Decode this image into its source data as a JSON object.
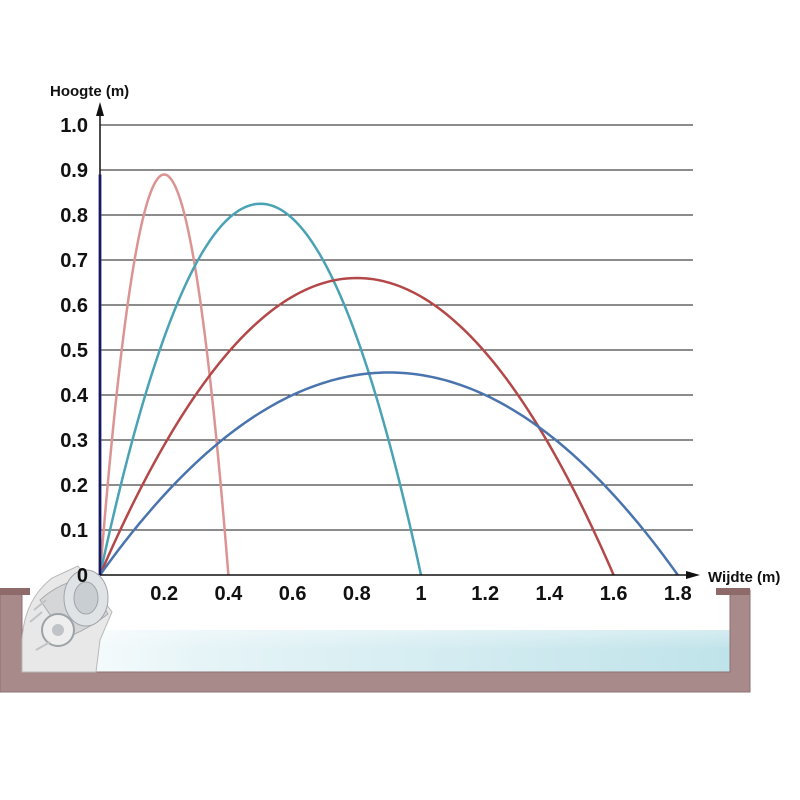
{
  "chart_data": {
    "type": "line",
    "xlabel": "Wijdte (m)",
    "ylabel": "Hoogte (m)",
    "xlim": [
      0,
      1.8
    ],
    "ylim": [
      0,
      1.0
    ],
    "x_ticks": [
      "0.2",
      "0.4",
      "0.6",
      "0.8",
      "1",
      "1.2",
      "1.4",
      "1.6",
      "1.8"
    ],
    "y_ticks": [
      "0",
      "0.1",
      "0.2",
      "0.3",
      "0.4",
      "0.5",
      "0.6",
      "0.7",
      "0.8",
      "0.9",
      "1.0"
    ],
    "grid": "horizontal",
    "series": [
      {
        "color": "#dc9493",
        "apex_x": 0.2,
        "peak": 0.89,
        "range_x": 0.4
      },
      {
        "color": "#4aa3b4",
        "apex_x": 0.5,
        "peak": 0.825,
        "range_x": 1.0
      },
      {
        "color": "#b44848",
        "apex_x": 0.8,
        "peak": 0.66,
        "range_x": 1.6
      },
      {
        "color": "#4a74ae",
        "apex_x": 0.9,
        "peak": 0.45,
        "range_x": 1.8
      }
    ]
  },
  "colors": {
    "axis": "#111111",
    "grid": "#1a1a1a",
    "basin_wall": "#a88a8a",
    "water": "#bfe3ea",
    "vertical_marker": "#3a44c8"
  },
  "icons": {
    "fountain_nozzle": "fountain-nozzle-icon"
  }
}
